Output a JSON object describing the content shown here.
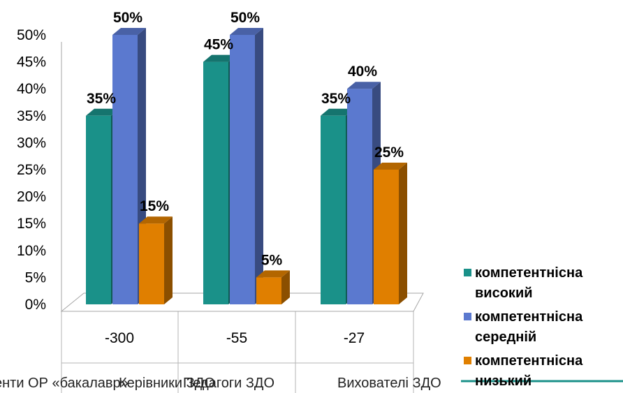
{
  "chart_data": {
    "type": "bar",
    "categories": [
      "-300",
      "-55",
      "-27"
    ],
    "category_captions": [
      "енти ОР «бакалавр»",
      "Керівники ЗДО",
      "Педагоги ЗДО",
      "Вихователі ЗДО"
    ],
    "series": [
      {
        "name": "компетентнісна високий",
        "values": [
          35,
          45,
          35
        ],
        "labels": [
          "35%",
          "45%",
          "35%"
        ],
        "color": "#1a9189"
      },
      {
        "name": "компетентнісна середній",
        "values": [
          50,
          50,
          40
        ],
        "labels": [
          "50%",
          "50%",
          "40%"
        ],
        "color": "#5b79cf"
      },
      {
        "name": "компетентнісна низький",
        "values": [
          15,
          5,
          25
        ],
        "labels": [
          "15%",
          "5%",
          "25%"
        ],
        "color": "#e07f00"
      }
    ],
    "legend_lines": [
      [
        "компетентнісна",
        "високий"
      ],
      [
        "компетентнісна",
        "середній"
      ],
      [
        "компетентнісна",
        "низький"
      ]
    ],
    "y_ticks": [
      "0%",
      "5%",
      "10%",
      "15%",
      "20%",
      "25%",
      "30%",
      "35%",
      "40%",
      "45%",
      "50%"
    ],
    "ylim": [
      0,
      50
    ],
    "legend_position": "right",
    "grid": false,
    "title": "",
    "xlabel": "",
    "ylabel": ""
  }
}
